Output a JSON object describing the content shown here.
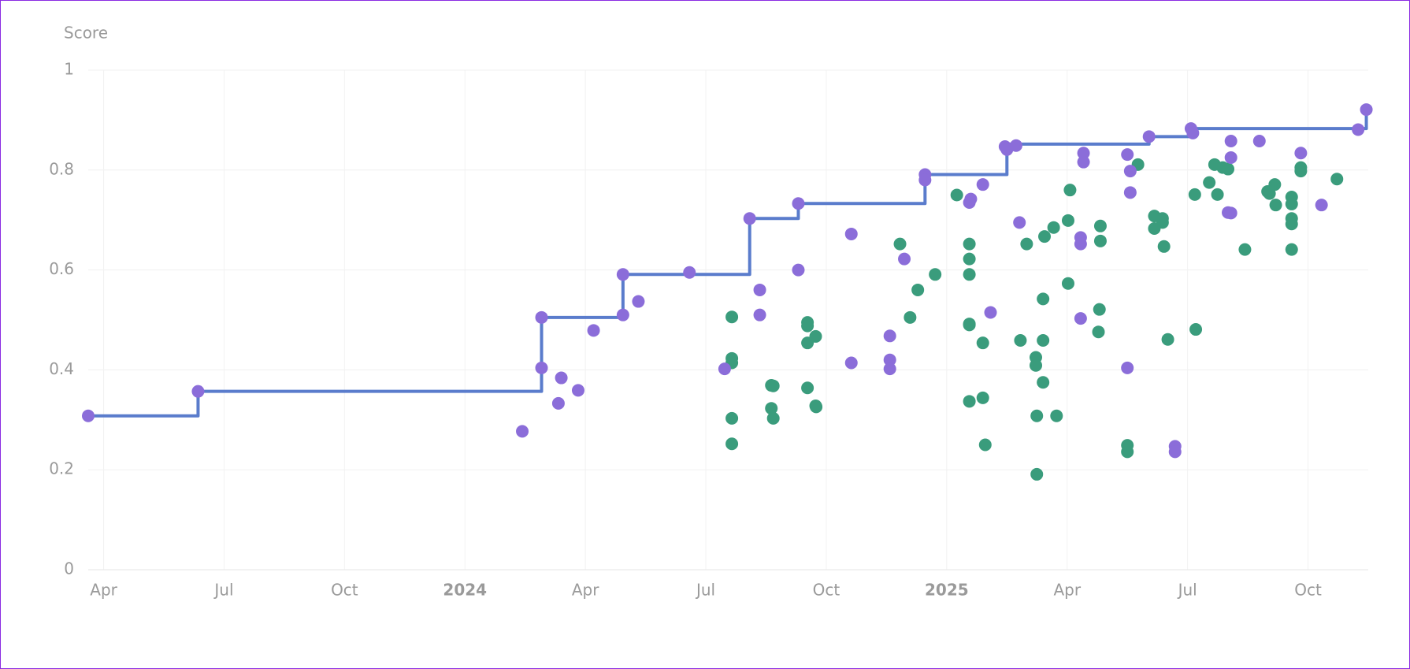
{
  "chart_data": {
    "type": "scatter",
    "ylabel": "Score",
    "xlim": [
      2023.218,
      2025.875
    ],
    "ylim": [
      0,
      1
    ],
    "xticks": [
      {
        "value": 2023.25,
        "label": "Apr"
      },
      {
        "value": 2023.5,
        "label": "Jul"
      },
      {
        "value": 2023.75,
        "label": "Oct"
      },
      2024,
      {
        "value": 2024.25,
        "label": "Apr"
      },
      {
        "value": 2024.5,
        "label": "Jul"
      },
      {
        "value": 2024.75,
        "label": "Oct"
      },
      2025,
      {
        "value": 2025.25,
        "label": "Apr"
      },
      {
        "value": 2025.5,
        "label": "Jul"
      },
      {
        "value": 2025.75,
        "label": "Oct"
      }
    ],
    "yticks": [
      0,
      0.2,
      0.4,
      0.6,
      0.8,
      1
    ],
    "grid": true,
    "series": [
      {
        "type": "step",
        "color": "#5a7ccc",
        "x": [
          2023.218,
          2023.446,
          2024.159,
          2024.328,
          2024.591,
          2024.692,
          2024.955,
          2025.125,
          2025.42,
          2025.507,
          2025.871
        ],
        "values": [
          0.308,
          0.357,
          0.505,
          0.591,
          0.703,
          0.733,
          0.791,
          0.852,
          0.867,
          0.883,
          0.921
        ]
      },
      {
        "type": "scatter",
        "color": "#3a9c7c",
        "x": [
          2024.554,
          2024.554,
          2024.554,
          2024.554,
          2024.554,
          2024.636,
          2024.64,
          2024.636,
          2024.64,
          2024.711,
          2024.711,
          2024.711,
          2024.711,
          2024.728,
          2024.728,
          2024.729,
          2024.903,
          2024.924,
          2024.94,
          2024.976,
          2025.021,
          2025.047,
          2025.047,
          2025.047,
          2025.047,
          2025.047,
          2025.047,
          2025.075,
          2025.075,
          2025.08,
          2025.153,
          2025.166,
          2025.185,
          2025.185,
          2025.187,
          2025.187,
          2025.2,
          2025.2,
          2025.2,
          2025.203,
          2025.222,
          2025.228,
          2025.252,
          2025.252,
          2025.256,
          2025.315,
          2025.317,
          2025.319,
          2025.319,
          2025.375,
          2025.375,
          2025.397,
          2025.431,
          2025.431,
          2025.448,
          2025.448,
          2025.451,
          2025.459,
          2025.515,
          2025.517,
          2025.545,
          2025.556,
          2025.562,
          2025.573,
          2025.584,
          2025.619,
          2025.666,
          2025.67,
          2025.681,
          2025.683,
          2025.716,
          2025.716,
          2025.716,
          2025.716,
          2025.716,
          2025.735,
          2025.735,
          2025.81
        ],
        "values": [
          0.506,
          0.423,
          0.414,
          0.303,
          0.252,
          0.369,
          0.368,
          0.323,
          0.303,
          0.495,
          0.488,
          0.454,
          0.364,
          0.467,
          0.328,
          0.326,
          0.652,
          0.505,
          0.56,
          0.591,
          0.75,
          0.652,
          0.622,
          0.591,
          0.492,
          0.49,
          0.337,
          0.454,
          0.344,
          0.25,
          0.459,
          0.652,
          0.425,
          0.409,
          0.308,
          0.191,
          0.459,
          0.542,
          0.375,
          0.667,
          0.685,
          0.308,
          0.699,
          0.573,
          0.76,
          0.476,
          0.521,
          0.688,
          0.658,
          0.249,
          0.236,
          0.811,
          0.708,
          0.683,
          0.703,
          0.695,
          0.647,
          0.461,
          0.751,
          0.481,
          0.775,
          0.811,
          0.751,
          0.805,
          0.802,
          0.641,
          0.757,
          0.753,
          0.771,
          0.73,
          0.746,
          0.732,
          0.703,
          0.692,
          0.641,
          0.805,
          0.798,
          0.782
        ]
      },
      {
        "type": "scatter",
        "color": "#8b6dd9",
        "x": [
          2023.218,
          2023.446,
          2024.119,
          2024.159,
          2024.159,
          2024.194,
          2024.2,
          2024.235,
          2024.267,
          2024.328,
          2024.328,
          2024.36,
          2024.466,
          2024.539,
          2024.591,
          2024.612,
          2024.612,
          2024.692,
          2024.692,
          2024.802,
          2024.802,
          2024.882,
          2024.882,
          2024.882,
          2024.912,
          2024.955,
          2024.955,
          2025.047,
          2025.05,
          2025.075,
          2025.091,
          2025.121,
          2025.125,
          2025.144,
          2025.151,
          2025.278,
          2025.284,
          2025.284,
          2025.278,
          2025.278,
          2025.375,
          2025.375,
          2025.381,
          2025.381,
          2025.42,
          2025.474,
          2025.474,
          2025.507,
          2025.511,
          2025.59,
          2025.59,
          2025.584,
          2025.59,
          2025.649,
          2025.735,
          2025.778,
          2025.854,
          2025.871
        ],
        "values": [
          0.308,
          0.357,
          0.277,
          0.404,
          0.505,
          0.333,
          0.384,
          0.359,
          0.479,
          0.51,
          0.591,
          0.537,
          0.595,
          0.402,
          0.703,
          0.56,
          0.51,
          0.6,
          0.733,
          0.414,
          0.672,
          0.468,
          0.42,
          0.402,
          0.622,
          0.791,
          0.78,
          0.735,
          0.742,
          0.771,
          0.515,
          0.847,
          0.841,
          0.849,
          0.695,
          0.503,
          0.834,
          0.816,
          0.665,
          0.652,
          0.404,
          0.831,
          0.798,
          0.755,
          0.867,
          0.247,
          0.236,
          0.883,
          0.874,
          0.858,
          0.825,
          0.715,
          0.714,
          0.858,
          0.834,
          0.73,
          0.881,
          0.921
        ]
      }
    ]
  }
}
